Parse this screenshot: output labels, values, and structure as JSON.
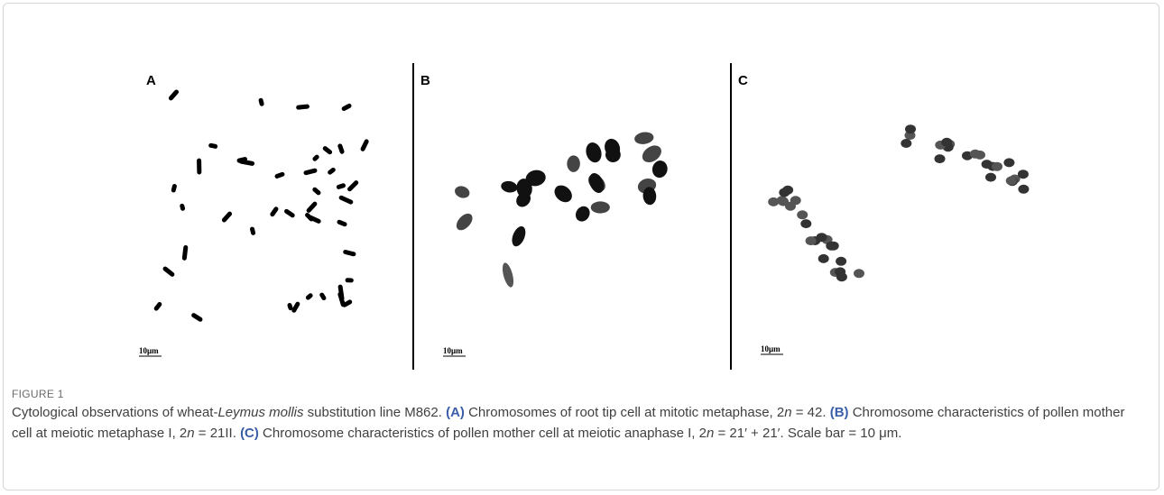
{
  "figure": {
    "panels": [
      {
        "label": "A",
        "scale_bar": "10μm"
      },
      {
        "label": "B",
        "scale_bar": "10μm"
      },
      {
        "label": "C",
        "scale_bar": "10μm"
      }
    ],
    "label": "FIGURE 1",
    "caption": [
      "Cytological observations of wheat-",
      "Leymus mollis",
      " substitution line M862. ",
      "(A)",
      " Chromosomes of root tip cell at mitotic metaphase, 2",
      "n",
      " = 42. ",
      "(B)",
      " Chromosome characteristics of pollen mother cell at meiotic metaphase I, 2",
      "n",
      " = 21II. ",
      "(C)",
      " Chromosome characteristics of pollen mother cell at meiotic anaphase I, 2",
      "n",
      " = 21′ + 21′. Scale bar = 10 μm."
    ]
  }
}
